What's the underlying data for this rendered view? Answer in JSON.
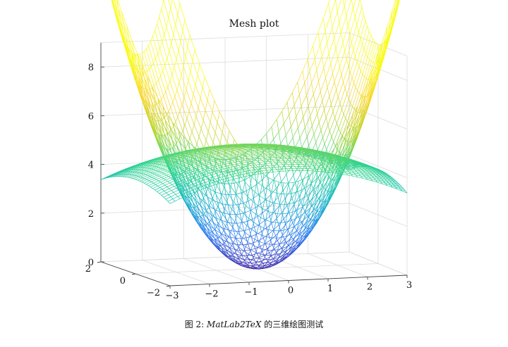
{
  "chart_data": {
    "type": "surface-mesh",
    "title": "Mesh plot",
    "xlim": [
      -3,
      3
    ],
    "ylim": [
      -2,
      2
    ],
    "zlim": [
      0,
      9
    ],
    "x_ticks": [
      "−3",
      "−2",
      "−1",
      "0",
      "1",
      "2",
      "3"
    ],
    "y_ticks": [
      "−2",
      "0",
      "2"
    ],
    "z_ticks": [
      "0",
      "2",
      "4",
      "6",
      "8"
    ],
    "grid": true,
    "colormap": [
      "#3e26a8",
      "#2b7af2",
      "#16b6c9",
      "#2fd58b",
      "#b9d52c",
      "#f9d531",
      "#f9fb15"
    ],
    "surfaces": [
      {
        "name": "",
        "formula": "z = x^2 + y^2"
      },
      {
        "name": "",
        "formula": "z = 5 - (x^2 + y^2)/8"
      }
    ]
  },
  "caption": {
    "prefix": "图 2:",
    "tex": "MatLab2TeX",
    "suffix": "的三维绘图测试"
  }
}
